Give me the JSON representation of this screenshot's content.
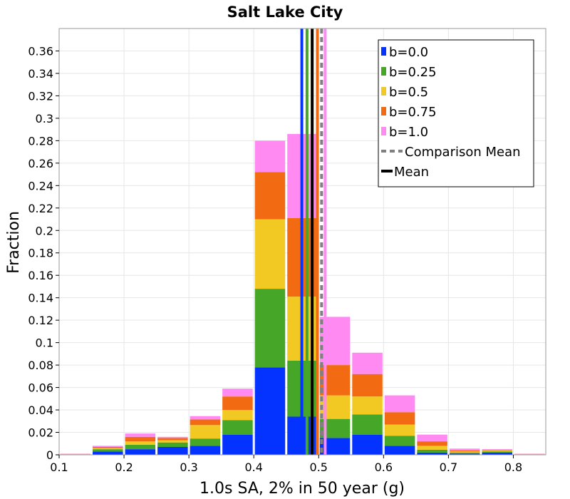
{
  "chart_data": {
    "type": "bar",
    "stacked": true,
    "title": "Salt Lake City",
    "xlabel": "1.0s SA, 2% in 50 year (g)",
    "ylabel": "Fraction",
    "xlim": [
      0.1,
      0.85
    ],
    "ylim": [
      0,
      0.38
    ],
    "bin_width": 0.05,
    "x_ticks": [
      "0.1",
      "0.2",
      "0.3",
      "0.4",
      "0.5",
      "0.6",
      "0.7",
      "0.8"
    ],
    "x_tick_values": [
      0.1,
      0.2,
      0.3,
      0.4,
      0.5,
      0.6,
      0.7,
      0.8
    ],
    "y_ticks": [
      "0",
      "0.02",
      "0.04",
      "0.06",
      "0.08",
      "0.1",
      "0.12",
      "0.14",
      "0.16",
      "0.18",
      "0.2",
      "0.22",
      "0.24",
      "0.26",
      "0.28",
      "0.3",
      "0.32",
      "0.34",
      "0.36"
    ],
    "y_tick_values": [
      0,
      0.02,
      0.04,
      0.06,
      0.08,
      0.1,
      0.12,
      0.14,
      0.16,
      0.18,
      0.2,
      0.22,
      0.24,
      0.26,
      0.28,
      0.3,
      0.32,
      0.34,
      0.36
    ],
    "bins": [
      0.125,
      0.175,
      0.225,
      0.275,
      0.325,
      0.375,
      0.425,
      0.475,
      0.525,
      0.575,
      0.625,
      0.675,
      0.725,
      0.775,
      0.825
    ],
    "series": [
      {
        "name": "b=0.0",
        "color": "#0433ff",
        "values": [
          0.0002,
          0.003,
          0.005,
          0.007,
          0.008,
          0.018,
          0.078,
          0.034,
          0.015,
          0.018,
          0.008,
          0.002,
          0.001,
          0.002,
          0.0002
        ]
      },
      {
        "name": "b=0.25",
        "color": "#46a628",
        "values": [
          0.0002,
          0.002,
          0.004,
          0.004,
          0.0065,
          0.013,
          0.07,
          0.05,
          0.017,
          0.018,
          0.009,
          0.0025,
          0.001,
          0.001,
          0.0002
        ]
      },
      {
        "name": "b=0.5",
        "color": "#f2c823",
        "values": [
          0.0002,
          0.001,
          0.003,
          0.002,
          0.012,
          0.009,
          0.062,
          0.057,
          0.021,
          0.016,
          0.01,
          0.0035,
          0.001,
          0.001,
          0.0002
        ]
      },
      {
        "name": "b=0.75",
        "color": "#f26a12",
        "values": [
          0.0002,
          0.001,
          0.004,
          0.002,
          0.005,
          0.012,
          0.042,
          0.07,
          0.027,
          0.02,
          0.011,
          0.004,
          0.001,
          0.0005,
          0.0002
        ]
      },
      {
        "name": "b=1.0",
        "color": "#ff8af2",
        "values": [
          0.0002,
          0.001,
          0.003,
          0.001,
          0.003,
          0.007,
          0.028,
          0.075,
          0.043,
          0.019,
          0.015,
          0.006,
          0.0015,
          0.0005,
          0.0002
        ]
      }
    ],
    "vertical_lines": [
      {
        "name": "b=0.0 mean",
        "x": 0.474,
        "color": "#0433ff",
        "dashed": false
      },
      {
        "name": "b=0.25 mean",
        "x": 0.482,
        "color": "#46a628",
        "dashed": false
      },
      {
        "name": "b=0.5 mean",
        "x": 0.49,
        "color": "#f2c823",
        "dashed": false
      },
      {
        "name": "Mean",
        "x": 0.49,
        "color": "#000000",
        "dashed": false
      },
      {
        "name": "b=0.75 mean",
        "x": 0.498,
        "color": "#f26a12",
        "dashed": false
      },
      {
        "name": "Comparison Mean",
        "x": 0.5045,
        "color": "#808080",
        "dashed": true
      },
      {
        "name": "b=1.0 mean",
        "x": 0.51,
        "color": "#ff8af2",
        "dashed": false
      }
    ],
    "legend": {
      "position": "top-right",
      "entries": [
        {
          "label": "b=0.0",
          "color": "#0433ff",
          "kind": "box"
        },
        {
          "label": "b=0.25",
          "color": "#46a628",
          "kind": "box"
        },
        {
          "label": "b=0.5",
          "color": "#f2c823",
          "kind": "box"
        },
        {
          "label": "b=0.75",
          "color": "#f26a12",
          "kind": "box"
        },
        {
          "label": "b=1.0",
          "color": "#ff8af2",
          "kind": "box"
        },
        {
          "label": "Comparison Mean",
          "color": "#808080",
          "kind": "dashed"
        },
        {
          "label": "Mean",
          "color": "#000000",
          "kind": "line"
        }
      ]
    },
    "grid": true
  }
}
